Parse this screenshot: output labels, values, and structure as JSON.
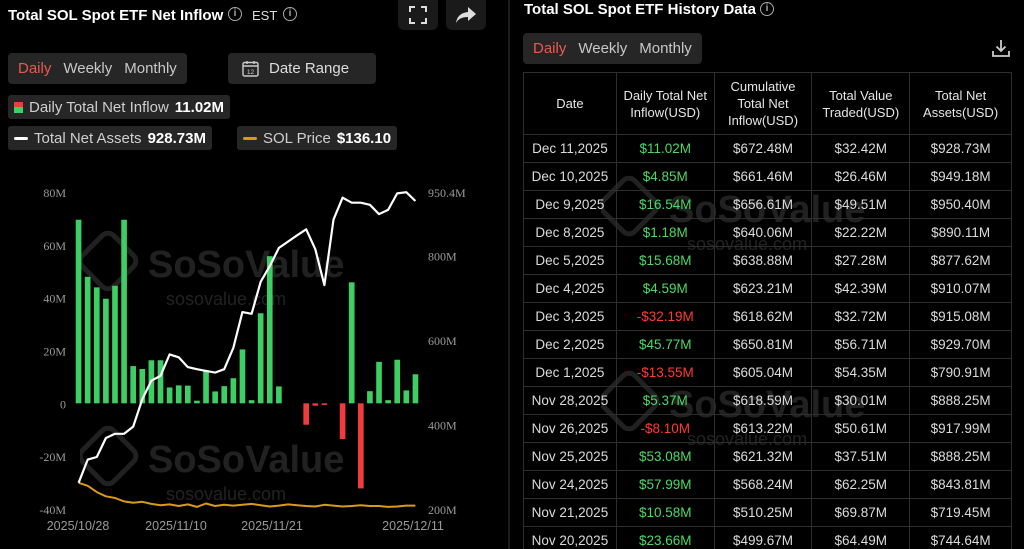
{
  "left_panel": {
    "title": "Total SOL Spot ETF Net Inflow",
    "timezone": "EST",
    "tabs": [
      {
        "label": "Daily",
        "active": true
      },
      {
        "label": "Weekly",
        "active": false
      },
      {
        "label": "Monthly",
        "active": false
      }
    ],
    "date_range_label": "Date Range",
    "date_range_icon": "calendar-icon",
    "legend": {
      "inflow_label": "Daily Total Net Inflow",
      "inflow_value": "11.02M",
      "assets_label": "Total Net Assets",
      "assets_value": "928.73M",
      "price_label": "SOL Price",
      "price_value": "$136.10"
    },
    "tools": [
      "fullscreen-icon",
      "share-icon"
    ]
  },
  "watermark": {
    "brand": "SoSoValue",
    "site": "sosovalue.com"
  },
  "chart_data": {
    "type": "bar",
    "x_tick_labels": [
      "2025/10/28",
      "2025/11/10",
      "2025/11/21",
      "2025/12/11"
    ],
    "y_left_ticks": [
      "80M",
      "60M",
      "40M",
      "20M",
      "0",
      "-20M",
      "-40M"
    ],
    "y_left_range": [
      -40,
      80
    ],
    "y_right_ticks": [
      "950.4M",
      "800M",
      "600M",
      "400M",
      "200M"
    ],
    "y_right_range": [
      200,
      950.4
    ],
    "inflow_series": [
      69.5,
      47.9,
      43.9,
      39.6,
      44.5,
      69.5,
      14.1,
      13.0,
      16.3,
      16.3,
      6.0,
      6.8,
      6.7,
      1.0,
      12.5,
      4.5,
      6.5,
      9.5,
      20.4,
      1.2,
      34.1,
      55.7,
      6.4,
      0.0,
      0.0,
      -8.1,
      -0.9,
      -0.6,
      0.0,
      -13.5,
      45.8,
      -32.2,
      4.6,
      15.7,
      1.2,
      16.5,
      4.9,
      11.0
    ],
    "assets_series": [
      262,
      317,
      323,
      368,
      378,
      378,
      395,
      460,
      504,
      515,
      566,
      559,
      536,
      531,
      527,
      523,
      531,
      581,
      666,
      662,
      738,
      775,
      818,
      833,
      848,
      862,
      815,
      730,
      885,
      937,
      925,
      925,
      920,
      898,
      908,
      947,
      950,
      929
    ],
    "price_series": [
      262,
      255,
      240,
      230,
      226,
      218,
      215,
      217,
      212,
      209,
      211,
      207,
      211,
      205,
      213,
      207,
      210,
      208,
      210,
      212,
      209,
      206,
      208,
      211,
      209,
      207,
      206,
      210,
      208,
      206,
      207,
      209,
      207,
      207,
      205,
      206,
      208,
      208
    ],
    "colors": {
      "positive": "#3dcf63",
      "negative": "#f23b3b",
      "assets": "#ffffff",
      "price": "#d9991a"
    }
  },
  "right_panel": {
    "title": "Total SOL Spot ETF History Data",
    "tabs": [
      {
        "label": "Daily",
        "active": true
      },
      {
        "label": "Weekly",
        "active": false
      },
      {
        "label": "Monthly",
        "active": false
      }
    ],
    "download_icon": "download-icon",
    "columns": [
      "Date",
      "Daily Total Net Inflow(USD)",
      "Cumulative Total Net Inflow(USD)",
      "Total Value Traded(USD)",
      "Total Net Assets(USD)"
    ],
    "rows": [
      {
        "date": "Dec 11,2025",
        "inflow": "$11.02M",
        "cum": "$672.48M",
        "traded": "$32.42M",
        "assets": "$928.73M",
        "sign": "pos"
      },
      {
        "date": "Dec 10,2025",
        "inflow": "$4.85M",
        "cum": "$661.46M",
        "traded": "$26.46M",
        "assets": "$949.18M",
        "sign": "pos"
      },
      {
        "date": "Dec 9,2025",
        "inflow": "$16.54M",
        "cum": "$656.61M",
        "traded": "$49.51M",
        "assets": "$950.40M",
        "sign": "pos"
      },
      {
        "date": "Dec 8,2025",
        "inflow": "$1.18M",
        "cum": "$640.06M",
        "traded": "$22.22M",
        "assets": "$890.11M",
        "sign": "pos"
      },
      {
        "date": "Dec 5,2025",
        "inflow": "$15.68M",
        "cum": "$638.88M",
        "traded": "$27.28M",
        "assets": "$877.62M",
        "sign": "pos"
      },
      {
        "date": "Dec 4,2025",
        "inflow": "$4.59M",
        "cum": "$623.21M",
        "traded": "$42.39M",
        "assets": "$910.07M",
        "sign": "pos"
      },
      {
        "date": "Dec 3,2025",
        "inflow": "-$32.19M",
        "cum": "$618.62M",
        "traded": "$32.72M",
        "assets": "$915.08M",
        "sign": "neg"
      },
      {
        "date": "Dec 2,2025",
        "inflow": "$45.77M",
        "cum": "$650.81M",
        "traded": "$56.71M",
        "assets": "$929.70M",
        "sign": "pos"
      },
      {
        "date": "Dec 1,2025",
        "inflow": "-$13.55M",
        "cum": "$605.04M",
        "traded": "$54.35M",
        "assets": "$790.91M",
        "sign": "neg"
      },
      {
        "date": "Nov 28,2025",
        "inflow": "$5.37M",
        "cum": "$618.59M",
        "traded": "$30.01M",
        "assets": "$888.25M",
        "sign": "pos"
      },
      {
        "date": "Nov 26,2025",
        "inflow": "-$8.10M",
        "cum": "$613.22M",
        "traded": "$50.61M",
        "assets": "$917.99M",
        "sign": "neg"
      },
      {
        "date": "Nov 25,2025",
        "inflow": "$53.08M",
        "cum": "$621.32M",
        "traded": "$37.51M",
        "assets": "$888.25M",
        "sign": "pos"
      },
      {
        "date": "Nov 24,2025",
        "inflow": "$57.99M",
        "cum": "$568.24M",
        "traded": "$62.25M",
        "assets": "$843.81M",
        "sign": "pos"
      },
      {
        "date": "Nov 21,2025",
        "inflow": "$10.58M",
        "cum": "$510.25M",
        "traded": "$69.87M",
        "assets": "$719.45M",
        "sign": "pos"
      },
      {
        "date": "Nov 20,2025",
        "inflow": "$23.66M",
        "cum": "$499.67M",
        "traded": "$64.49M",
        "assets": "$744.64M",
        "sign": "pos"
      }
    ]
  }
}
